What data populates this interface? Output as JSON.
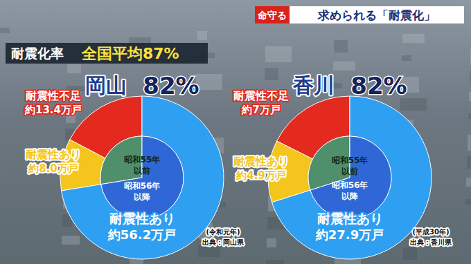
{
  "header": {
    "tag": "命守る",
    "title": "求められる「耐震化」",
    "label": "耐震化率",
    "average": "全国平均87%"
  },
  "chart_data": [
    {
      "type": "pie",
      "title": "岡山",
      "subtitle": "82%",
      "categories": [
        "耐震性不足",
        "耐震性あり",
        "耐震性あり"
      ],
      "values": [
        13.4,
        8.0,
        56.2
      ],
      "value_labels": [
        "約13.4万戸",
        "約8.0万戸",
        "約56.2万戸"
      ],
      "colors": [
        "#e42a1f",
        "#f3c51d",
        "#2f9ff2"
      ],
      "data_labels": true,
      "inner": {
        "labels": [
          [
            "昭和55年",
            "以前"
          ],
          [
            "昭和56年",
            "以降"
          ]
        ],
        "values": [
          21.4,
          56.2
        ],
        "colors": [
          "#4f8f6c",
          "#2f68d6"
        ]
      },
      "note": "(令和元年)",
      "source": "出典：岡山県"
    },
    {
      "type": "pie",
      "title": "香川",
      "subtitle": "82%",
      "categories": [
        "耐震性不足",
        "耐震性あり",
        "耐震性あり"
      ],
      "values": [
        7,
        4.9,
        27.9
      ],
      "value_labels": [
        "約7万戸",
        "約4.9万戸",
        "約27.9万戸"
      ],
      "colors": [
        "#e42a1f",
        "#f3c51d",
        "#2f9ff2"
      ],
      "data_labels": true,
      "inner": {
        "labels": [
          [
            "昭和55年",
            "以前"
          ],
          [
            "昭和56年",
            "以降"
          ]
        ],
        "values": [
          11.9,
          27.9
        ],
        "colors": [
          "#4f8f6c",
          "#2f68d6"
        ]
      },
      "note": "(平成30年)",
      "source": "出典：香川県"
    }
  ]
}
